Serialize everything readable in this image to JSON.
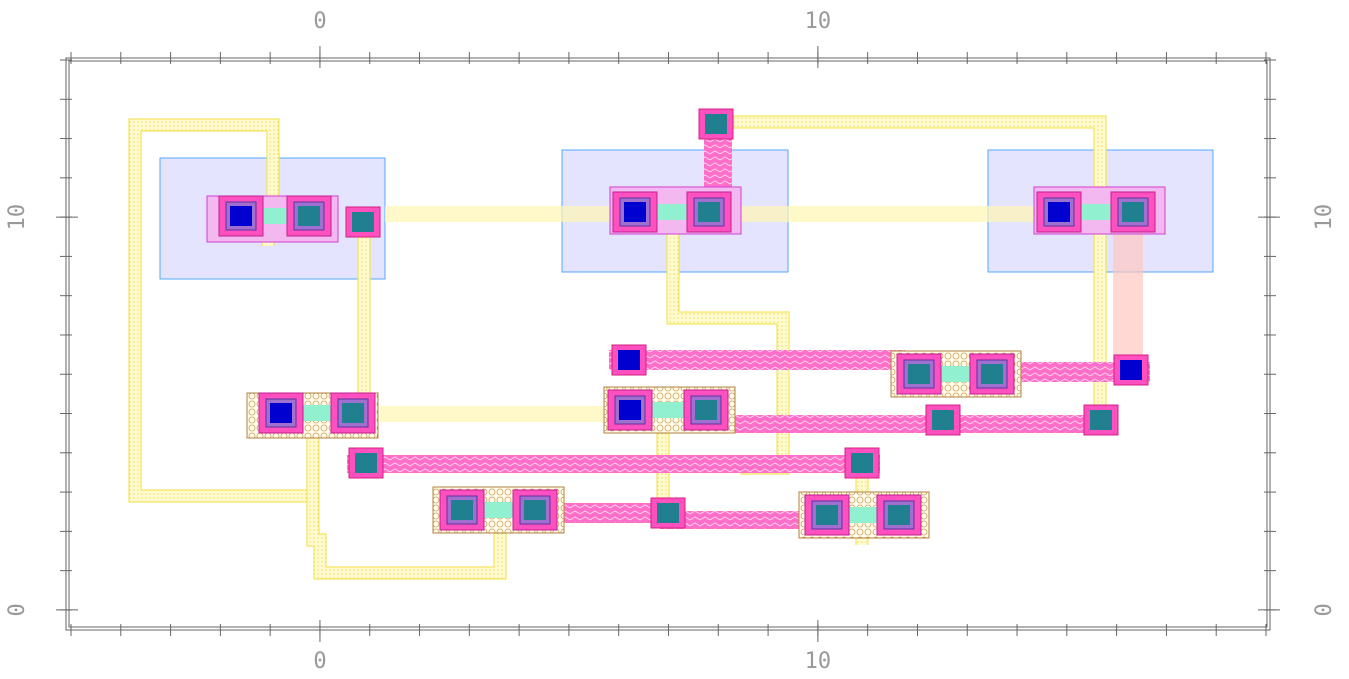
{
  "chart_data": {
    "type": "layout",
    "xlim": [
      -5.06,
      19.04
    ],
    "ylim": [
      -0.46,
      14.0
    ],
    "xticks": [
      0,
      10
    ],
    "yticks": [
      0,
      10
    ]
  }
}
